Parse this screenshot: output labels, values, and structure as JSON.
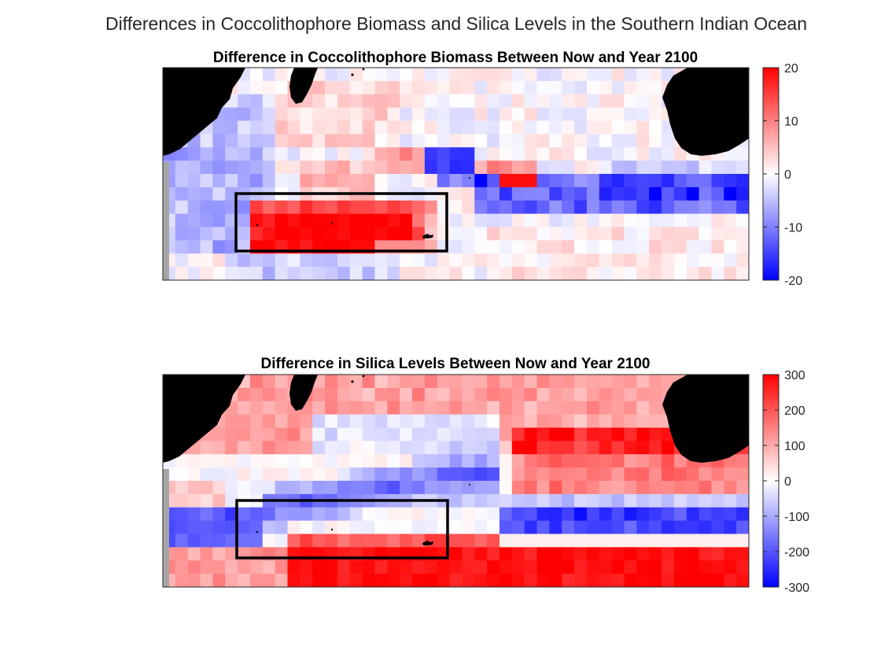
{
  "suptitle": "Differences in Coccolithophore Biomass and Silica Levels in the Southern Indian Ocean",
  "colors": {
    "negative": "#0000ff",
    "neutral": "#ffffff",
    "positive": "#ff0000",
    "land": "#000000",
    "nodata": "#a6a6a6",
    "box": "#000000"
  },
  "chart_data": [
    {
      "type": "heatmap",
      "title": "Difference in Coccolithophore Biomass Between Now and Year 2100",
      "colorbar": {
        "range": [
          -20,
          20
        ],
        "ticks": [
          20,
          10,
          0,
          -10,
          -20
        ],
        "tick_labels": [
          "20",
          "10",
          "0",
          "-10",
          "-20"
        ],
        "colormap": "blue-white-red"
      },
      "grid": {
        "rows": 16,
        "cols": 47
      },
      "features": {
        "positive_band": {
          "rows": [
            10,
            13
          ],
          "cols": [
            5,
            17
          ],
          "value": 20
        },
        "secondary_positive": {
          "rows": [
            6,
            7
          ],
          "cols": [
            16,
            22
          ],
          "value": 9
        },
        "negative_patches": [
          {
            "rows": [
              6,
              7
            ],
            "cols": [
              20,
              24
            ],
            "value": -18
          },
          {
            "rows": [
              7,
              9
            ],
            "cols": [
              30,
              47
            ],
            "value": -12
          }
        ],
        "positive_patch": {
          "rows": [
            7,
            8
          ],
          "cols": [
            27,
            29
          ],
          "value": 19
        },
        "highlight_box": "rectangle around positive band"
      }
    },
    {
      "type": "heatmap",
      "title": "Difference in Silica Levels Between Now and Year 2100",
      "colorbar": {
        "range": [
          -300,
          300
        ],
        "ticks": [
          300,
          200,
          100,
          0,
          -100,
          -200,
          -300
        ],
        "tick_labels": [
          "300",
          "200",
          "100",
          "0",
          "-100",
          "-200",
          "-300"
        ],
        "colormap": "blue-white-red"
      },
      "grid": {
        "rows": 16,
        "cols": 47
      },
      "features": {
        "north_positive": {
          "rows": [
            0,
            5
          ],
          "value": 110
        },
        "diagonal_negative_band": {
          "value": -160
        },
        "southern_positive_band": {
          "rows": [
            12,
            15
          ],
          "value": 290
        },
        "east_positive": {
          "rows": [
            4,
            8
          ],
          "cols": [
            30,
            45
          ],
          "value": 200
        },
        "highlight_box": "rectangle around western negative band"
      }
    }
  ]
}
